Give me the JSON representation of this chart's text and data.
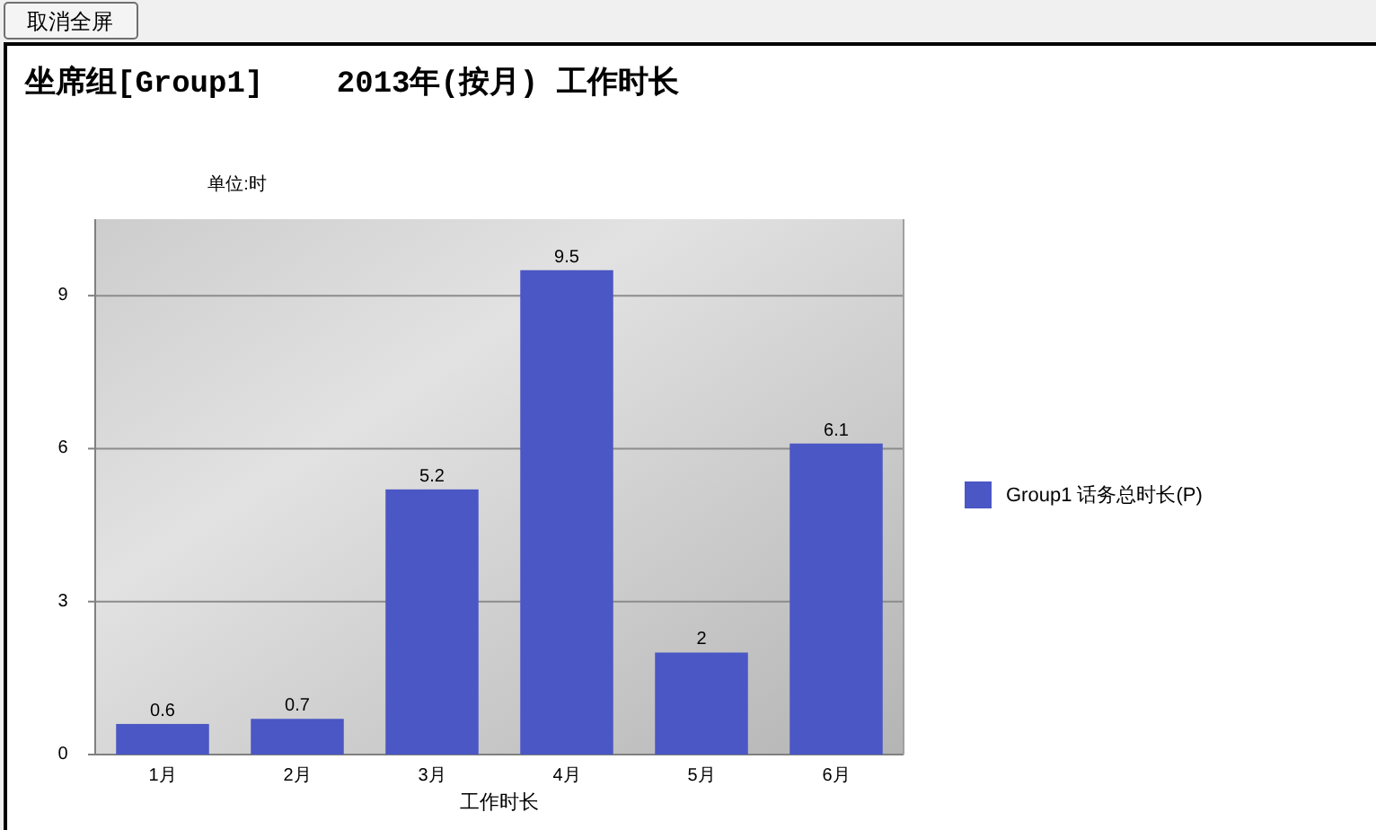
{
  "chart_data": {
    "type": "bar",
    "title": "坐席组[Group1]    2013年(按月) 工作时长",
    "categories": [
      "1月",
      "2月",
      "3月",
      "4月",
      "5月",
      "6月"
    ],
    "series": [
      {
        "name": "Group1 话务总时长(P)",
        "color": "#4b57c4",
        "values": [
          0.6,
          0.7,
          5.2,
          9.5,
          2,
          6.1
        ]
      }
    ],
    "xlabel": "工作时长",
    "ylabel": "单位:时",
    "annotations": [
      "取消全屏"
    ],
    "ylim": [
      0,
      10.5
    ],
    "yticks": [
      0,
      3,
      6,
      9
    ],
    "grid": "y",
    "legend": "right",
    "data_labels": true
  }
}
